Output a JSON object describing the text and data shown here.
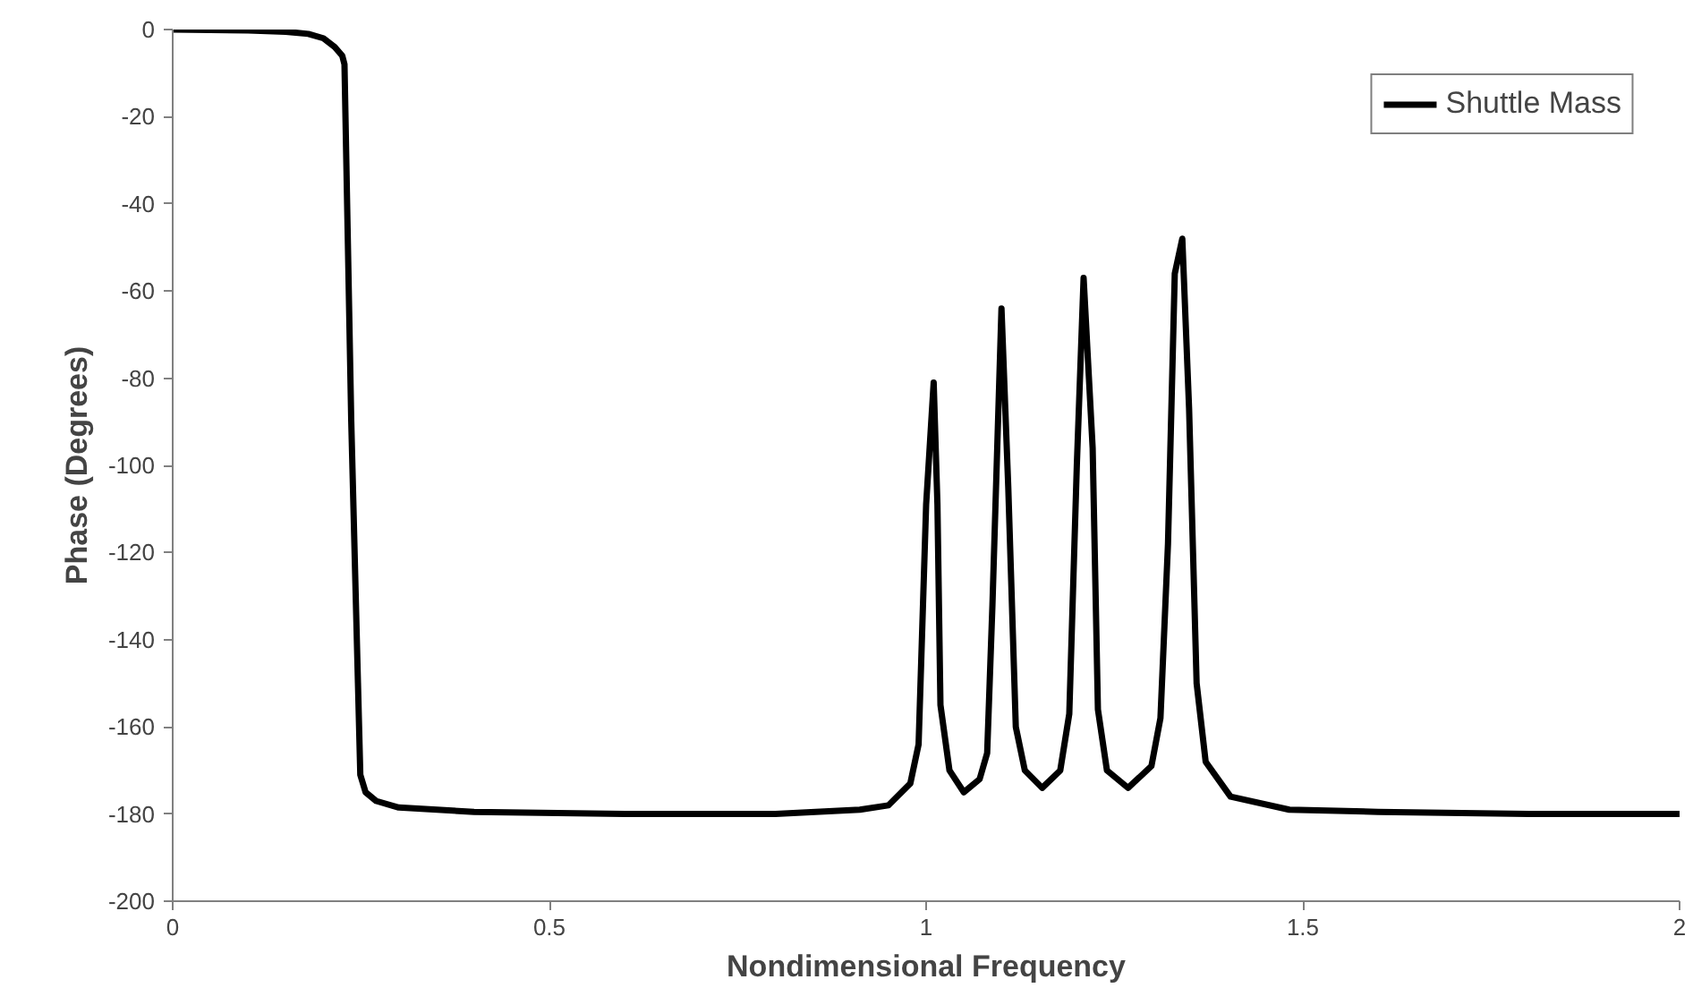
{
  "chart_data": {
    "type": "line",
    "xlabel": "Nondimensional Frequency",
    "ylabel": "Phase (Degrees)",
    "xlim": [
      0,
      2
    ],
    "xticks": [
      0,
      {
        "value": 0.5,
        "label": "0.5"
      },
      1,
      {
        "value": 1.5,
        "label": "1.5"
      },
      2
    ],
    "ylim": [
      -200,
      0
    ],
    "yticks": [
      -200,
      -180,
      -160,
      -140,
      -120,
      -100,
      -80,
      -60,
      -40,
      -20,
      0
    ],
    "grid": false,
    "legend": "top right",
    "marker": "none",
    "line_style": "solid",
    "series": [
      {
        "name": "Shuttle Mass",
        "color": "#000000",
        "x": [
          0,
          0.1,
          0.15,
          0.18,
          0.2,
          0.215,
          0.225,
          0.228,
          0.237,
          0.249,
          0.256,
          0.27,
          0.3,
          0.4,
          0.6,
          0.8,
          0.912,
          0.95,
          0.979,
          0.99,
          1.0,
          1.01,
          1.015,
          1.019,
          1.031,
          1.05,
          1.071,
          1.081,
          1.088,
          1.1,
          1.109,
          1.119,
          1.131,
          1.154,
          1.178,
          1.19,
          1.2,
          1.209,
          1.221,
          1.228,
          1.24,
          1.268,
          1.299,
          1.311,
          1.321,
          1.33,
          1.34,
          1.349,
          1.359,
          1.371,
          1.404,
          1.482,
          1.6,
          1.8,
          2
        ],
        "values": [
          0,
          -0.2,
          -0.5,
          -1,
          -2,
          -4,
          -6,
          -8,
          -90,
          -171,
          -175,
          -177,
          -178.5,
          -179.5,
          -180,
          -180,
          -179,
          -178,
          -173,
          -164,
          -109,
          -81,
          -109,
          -155,
          -170,
          -175,
          -172,
          -166,
          -132,
          -64,
          -105,
          -160,
          -170,
          -174,
          -170,
          -157,
          -100,
          -57,
          -96,
          -156,
          -170,
          -174,
          -169,
          -158,
          -118,
          -56,
          -48,
          -87,
          -150,
          -168,
          -176,
          -179,
          -179.5,
          -180,
          -180
        ]
      }
    ]
  }
}
